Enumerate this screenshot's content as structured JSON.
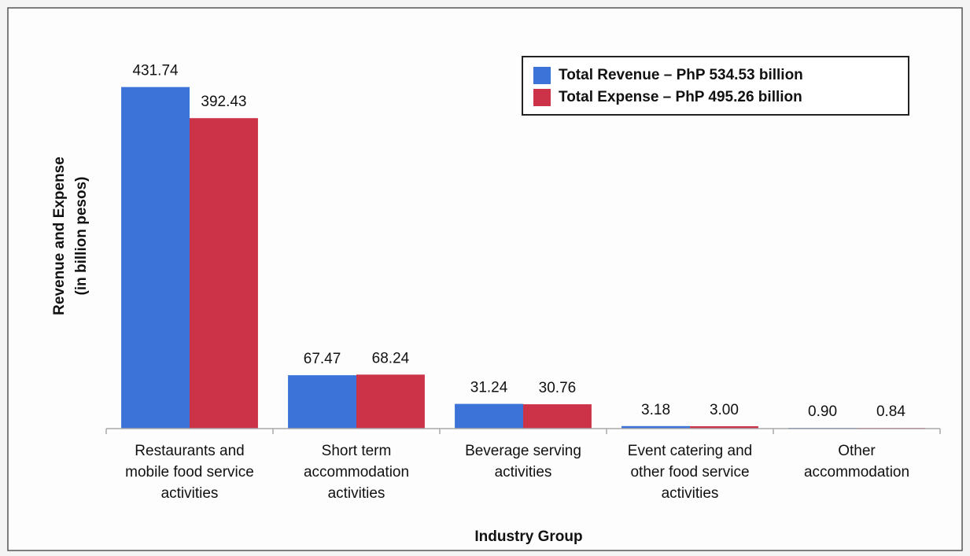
{
  "chart_data": {
    "type": "bar",
    "x_label": "Industry Group",
    "y_label": [
      "Revenue and Expense",
      "(in billion pesos)"
    ],
    "categories": [
      "Restaurants and mobile food service activities",
      "Short term accommodation activities",
      "Beverage serving activities",
      "Event catering and other food service activities",
      "Other accommodation"
    ],
    "series": [
      {
        "name": "Total Revenue – PhP 534.53 billion",
        "color": "#3b73d8",
        "values": [
          431.74,
          67.47,
          31.24,
          3.18,
          0.9
        ],
        "value_labels": [
          "431.74",
          "67.47",
          "31.24",
          "3.18",
          "0.90"
        ]
      },
      {
        "name": "Total Expense – PhP 495.26 billion",
        "color": "#cc3348",
        "values": [
          392.43,
          68.24,
          30.76,
          3.0,
          0.84
        ],
        "value_labels": [
          "392.43",
          "68.24",
          "30.76",
          "3.00",
          "0.84"
        ]
      }
    ],
    "ylim": [
      0,
      500
    ],
    "legend": "top-right"
  }
}
